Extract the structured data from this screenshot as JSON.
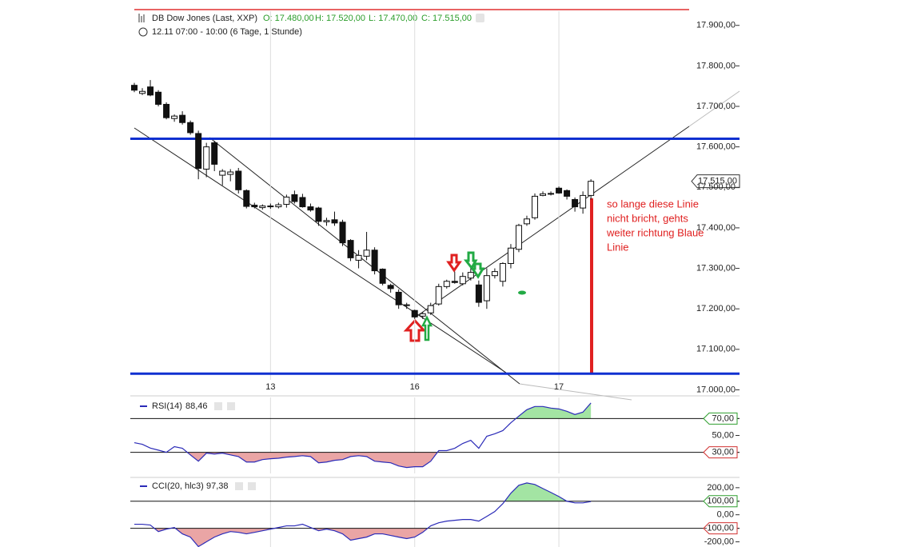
{
  "chart_data": [
    {
      "type": "candlestick",
      "title": "DB Dow Jones (Last, XXP)",
      "ohlc": [
        "O: 17.480,00",
        "H: 17.520,00",
        "L: 17.470,00",
        "C: 17.515,00"
      ],
      "subtitle": "12.11 07:00 - 10:00 (6 Tage, 1 Stunde)",
      "annotation": [
        "so lange diese Linie",
        "nicht bricht, gehts",
        "weiter richtung Blaue",
        "Linie"
      ],
      "last_price": {
        "value": 17515,
        "label": "17.515,00"
      },
      "categories": [
        null,
        null,
        null,
        null,
        null,
        null,
        null,
        null,
        null,
        null,
        null,
        null,
        null,
        null,
        null,
        null,
        null,
        "13",
        null,
        null,
        null,
        null,
        null,
        null,
        null,
        null,
        null,
        null,
        null,
        null,
        null,
        null,
        null,
        null,
        null,
        "16",
        null,
        null,
        null,
        null,
        null,
        null,
        null,
        null,
        null,
        null,
        null,
        null,
        null,
        null,
        null,
        null,
        null,
        "17",
        null,
        null,
        null,
        null
      ],
      "open": [
        17752,
        17732,
        17748,
        17735,
        17705,
        17670,
        17678,
        17660,
        17633,
        17545,
        17610,
        17530,
        17532,
        17540,
        17492,
        17456,
        17450,
        17453,
        17452,
        17458,
        17482,
        17475,
        17452,
        17449,
        17415,
        17420,
        17414,
        17369,
        17320,
        17330,
        17345,
        17298,
        17258,
        17241,
        17208,
        17196,
        17182,
        17190,
        17212,
        17255,
        17268,
        17262,
        17276,
        17259,
        17220,
        17282,
        17268,
        17312,
        17347,
        17410,
        17425,
        17480,
        17484,
        17498,
        17492,
        17470,
        17449,
        17480
      ],
      "high": [
        17758,
        17745,
        17765,
        17740,
        17710,
        17680,
        17688,
        17665,
        17640,
        17610,
        17615,
        17545,
        17545,
        17548,
        17495,
        17462,
        17458,
        17460,
        17462,
        17482,
        17492,
        17484,
        17460,
        17452,
        17425,
        17440,
        17420,
        17372,
        17345,
        17390,
        17352,
        17300,
        17262,
        17248,
        17215,
        17198,
        17192,
        17215,
        17262,
        17272,
        17292,
        17290,
        17300,
        17270,
        17300,
        17300,
        17315,
        17360,
        17410,
        17430,
        17485,
        17490,
        17490,
        17502,
        17495,
        17475,
        17490,
        17520
      ],
      "low": [
        17735,
        17728,
        17725,
        17700,
        17668,
        17662,
        17655,
        17630,
        17520,
        17525,
        17540,
        17505,
        17515,
        17485,
        17448,
        17448,
        17445,
        17447,
        17448,
        17450,
        17460,
        17450,
        17440,
        17405,
        17405,
        17405,
        17355,
        17318,
        17300,
        17320,
        17285,
        17258,
        17240,
        17200,
        17200,
        17175,
        17175,
        17185,
        17208,
        17250,
        17262,
        17258,
        17270,
        17205,
        17200,
        17275,
        17255,
        17300,
        17340,
        17405,
        17420,
        17478,
        17480,
        17484,
        17470,
        17440,
        17435,
        17470
      ],
      "close": [
        17740,
        17737,
        17728,
        17705,
        17672,
        17676,
        17660,
        17635,
        17547,
        17600,
        17557,
        17540,
        17538,
        17494,
        17453,
        17452,
        17454,
        17454,
        17457,
        17476,
        17465,
        17452,
        17444,
        17416,
        17418,
        17412,
        17363,
        17326,
        17332,
        17345,
        17294,
        17263,
        17250,
        17210,
        17210,
        17180,
        17188,
        17208,
        17255,
        17268,
        17265,
        17280,
        17290,
        17216,
        17282,
        17292,
        17312,
        17350,
        17406,
        17422,
        17478,
        17484,
        17485,
        17486,
        17478,
        17452,
        17480,
        17515
      ],
      "ylim": [
        16995,
        17935
      ],
      "yticks": [
        {
          "value": 17900,
          "label": "17.900,00"
        },
        {
          "value": 17800,
          "label": "17.800,00"
        },
        {
          "value": 17700,
          "label": "17.700,00"
        },
        {
          "value": 17600,
          "label": "17.600,00"
        },
        {
          "value": 17500,
          "label": "17.500,00"
        },
        {
          "value": 17400,
          "label": "17.400,00"
        },
        {
          "value": 17300,
          "label": "17.300,00"
        },
        {
          "value": 17200,
          "label": "17.200,00"
        },
        {
          "value": 17100,
          "label": "17.100,00"
        },
        {
          "value": 17000,
          "label": "17.000,00"
        }
      ],
      "levels": [
        17620,
        17040
      ],
      "level_color": "#1030d0"
    },
    {
      "type": "line",
      "name": "RSI(14)",
      "current": "88,46",
      "color": "#2b2bb8",
      "values": [
        41.4,
        39.5,
        35,
        32.6,
        30,
        36.7,
        34.8,
        27,
        19.5,
        29,
        28,
        29,
        27,
        25,
        18.5,
        18.5,
        21.4,
        22.4,
        23,
        24.3,
        25,
        26,
        25,
        17.6,
        18.5,
        20.5,
        21.4,
        25,
        26,
        25,
        19.5,
        18.5,
        17.6,
        13.8,
        12,
        12.9,
        12.9,
        19.5,
        32,
        32,
        34.8,
        40.5,
        44.3,
        34.8,
        49,
        51.9,
        55.7,
        65,
        72.9,
        80.5,
        84.3,
        84.3,
        82.4,
        81.4,
        78.6,
        74.8,
        77.6,
        88.46
      ],
      "ylim": [
        5,
        95
      ],
      "yticks": [
        {
          "value": 70,
          "label": "70,00"
        },
        {
          "value": 50,
          "label": "50,00"
        },
        {
          "value": 30,
          "label": "30,00"
        }
      ],
      "levels": [
        70,
        30
      ],
      "level_colors": [
        "#2e9e2e",
        "#d03030"
      ],
      "fill_colors": [
        "#a3e4a3",
        "#eaa5a5"
      ]
    },
    {
      "type": "line",
      "name": "CCI(20, hlc3)",
      "current": "97,38",
      "color": "#2b2bb8",
      "values": [
        -70,
        -70,
        -76,
        -124,
        -106,
        -94,
        -141,
        -165,
        -235,
        -200,
        -165,
        -141,
        -124,
        -130,
        -141,
        -130,
        -118,
        -106,
        -94,
        -82,
        -82,
        -70,
        -94,
        -118,
        -106,
        -118,
        -141,
        -188,
        -176,
        -165,
        -141,
        -141,
        -153,
        -165,
        -176,
        -165,
        -130,
        -82,
        -59,
        -47,
        -41,
        -35,
        -35,
        -47,
        -12,
        24,
        82,
        159,
        218,
        235,
        224,
        194,
        165,
        135,
        100,
        88,
        88,
        97.38
      ],
      "ylim": [
        -250,
        270
      ],
      "yticks": [
        {
          "value": 200,
          "label": "200,00"
        },
        {
          "value": 100,
          "label": "100,00"
        },
        {
          "value": 0,
          "label": "0,00"
        },
        {
          "value": -100,
          "label": "-100,00"
        },
        {
          "value": -200,
          "label": "-200,00"
        }
      ],
      "levels": [
        100,
        -100
      ],
      "level_colors": [
        "#2e9e2e",
        "#d03030"
      ],
      "fill_colors": [
        "#a3e4a3",
        "#eaa5a5"
      ]
    }
  ]
}
